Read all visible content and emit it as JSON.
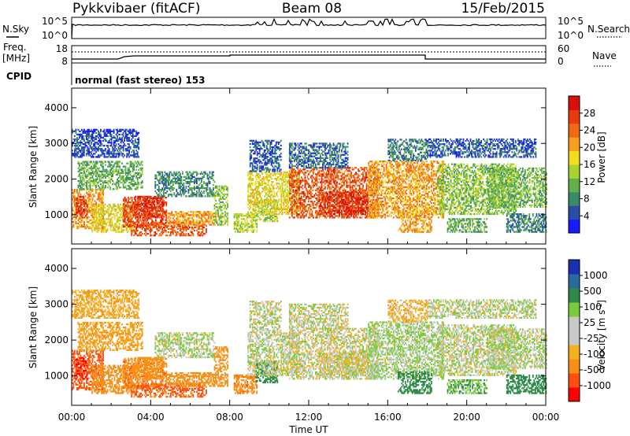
{
  "header": {
    "station": "Pykkvibaer (fitACF)",
    "beam": "Beam 08",
    "date": "15/Feb/2015"
  },
  "status_panels": {
    "nsky_label": "N.Sky",
    "nsky_ticks": [
      "10^5",
      "10^0"
    ],
    "nsearch_label": "N.Search",
    "nsearch_ticks": [
      "10^5",
      "10^0"
    ],
    "freq_label": "Freq.",
    "freq_unit": "[MHz]",
    "freq_ticks": [
      "18",
      "8"
    ],
    "nave_label": "Nave",
    "nave_ticks": [
      "60",
      "0"
    ],
    "cpid_label": "CPID",
    "cpid_value": "normal (fast stereo) 153"
  },
  "chart_data": [
    {
      "type": "heatmap",
      "name": "power",
      "ylabel": "Slant Range [km]",
      "ylim": [
        180,
        4550
      ],
      "yticks": [
        {
          "value": 1000,
          "label": "1000"
        },
        {
          "value": 2000,
          "label": "2000"
        },
        {
          "value": 3000,
          "label": "3000"
        },
        {
          "value": 4000,
          "label": "4000"
        }
      ],
      "colorbar": {
        "label": "Power [dB]",
        "ticks": [
          "4",
          "8",
          "12",
          "16",
          "20",
          "24",
          "28"
        ],
        "colors": [
          "#1a1aff",
          "#2a4da8",
          "#3a8a6a",
          "#5fb14a",
          "#a8d22e",
          "#f5dc1e",
          "#f5a01e",
          "#f06a14",
          "#e83a0e",
          "#d8100a"
        ]
      }
    },
    {
      "type": "heatmap",
      "name": "velocity",
      "ylabel": "Slant Range [km]",
      "ylim": [
        180,
        4550
      ],
      "yticks": [
        {
          "value": 1000,
          "label": "1000"
        },
        {
          "value": 2000,
          "label": "2000"
        },
        {
          "value": 3000,
          "label": "3000"
        },
        {
          "value": 4000,
          "label": "4000"
        }
      ],
      "colorbar": {
        "label": "Velocity [m s",
        "label_sup": "-1",
        "label_end": "]",
        "ticks": [
          "-1000",
          "-500",
          "-100",
          "-25",
          "25",
          "100",
          "500",
          "1000"
        ],
        "colors": [
          "#ff0000",
          "#ff5010",
          "#f79016",
          "#f5b020",
          "#c8c8c8",
          "#c8c8c8",
          "#7acb3c",
          "#2f8a4a",
          "#2a6aa0",
          "#1a30b0"
        ]
      }
    }
  ],
  "x_axis": {
    "label": "Time UT",
    "xlim": [
      0,
      24
    ],
    "ticks": [
      {
        "value": 0,
        "label": "00:00"
      },
      {
        "value": 4,
        "label": "04:00"
      },
      {
        "value": 8,
        "label": "08:00"
      },
      {
        "value": 12,
        "label": "12:00"
      },
      {
        "value": 16,
        "label": "16:00"
      },
      {
        "value": 20,
        "label": "20:00"
      },
      {
        "value": 24,
        "label": "00:00"
      }
    ]
  },
  "scatter_regions": [
    {
      "t0": 0.0,
      "t1": 1.6,
      "r0": 600,
      "r1": 1700,
      "p": 22,
      "v": -700
    },
    {
      "t0": 0.2,
      "t1": 0.8,
      "r0": 900,
      "r1": 1500,
      "p": 28,
      "v": -1000
    },
    {
      "t0": 1.0,
      "t1": 3.2,
      "r0": 500,
      "r1": 1300,
      "p": 18,
      "v": -300
    },
    {
      "t0": 2.6,
      "t1": 4.8,
      "r0": 650,
      "r1": 1500,
      "p": 27,
      "v": -400
    },
    {
      "t0": 3.2,
      "t1": 4.6,
      "r0": 900,
      "r1": 1500,
      "p": 28,
      "v": -200
    },
    {
      "t0": 3.0,
      "t1": 6.8,
      "r0": 400,
      "r1": 800,
      "p": 26,
      "v": -600
    },
    {
      "t0": 4.8,
      "t1": 7.4,
      "r0": 700,
      "r1": 1100,
      "p": 22,
      "v": -200
    },
    {
      "t0": 4.2,
      "t1": 7.2,
      "r0": 1500,
      "r1": 2200,
      "p": 10,
      "v": 20
    },
    {
      "t0": 0.3,
      "t1": 3.6,
      "r0": 1700,
      "r1": 2500,
      "p": 12,
      "v": -100
    },
    {
      "t0": 0.0,
      "t1": 3.4,
      "r0": 2600,
      "r1": 3400,
      "p": 6,
      "v": -80
    },
    {
      "t0": 7.2,
      "t1": 7.9,
      "r0": 700,
      "r1": 1800,
      "p": 14,
      "v": -300
    },
    {
      "t0": 8.2,
      "t1": 9.4,
      "r0": 500,
      "r1": 1000,
      "p": 16,
      "v": -400
    },
    {
      "t0": 9.3,
      "t1": 10.4,
      "r0": 800,
      "r1": 1400,
      "p": 15,
      "v": 150
    },
    {
      "t0": 8.9,
      "t1": 11.5,
      "r0": 1000,
      "r1": 2200,
      "p": 18,
      "v": 10
    },
    {
      "t0": 9.0,
      "t1": 10.6,
      "r0": 2200,
      "r1": 3100,
      "p": 7,
      "v": 5
    },
    {
      "t0": 11.0,
      "t1": 15.5,
      "r0": 900,
      "r1": 2300,
      "p": 26,
      "v": 0
    },
    {
      "t0": 12.5,
      "t1": 15.0,
      "r0": 1000,
      "r1": 1600,
      "p": 29,
      "v": -10
    },
    {
      "t0": 11.0,
      "t1": 14.0,
      "r0": 2300,
      "r1": 3000,
      "p": 8,
      "v": 10
    },
    {
      "t0": 15.0,
      "t1": 18.8,
      "r0": 900,
      "r1": 2500,
      "p": 22,
      "v": 30
    },
    {
      "t0": 16.5,
      "t1": 18.2,
      "r0": 500,
      "r1": 1100,
      "p": 22,
      "v": 200
    },
    {
      "t0": 16.0,
      "t1": 18.0,
      "r0": 2500,
      "r1": 3100,
      "p": 9,
      "v": -60
    },
    {
      "t0": 18.5,
      "t1": 22.5,
      "r0": 1000,
      "r1": 2400,
      "p": 14,
      "v": 10
    },
    {
      "t0": 19.0,
      "t1": 21.0,
      "r0": 500,
      "r1": 900,
      "p": 12,
      "v": 80
    },
    {
      "t0": 21.0,
      "t1": 24.0,
      "r0": 1200,
      "r1": 2300,
      "p": 13,
      "v": 20
    },
    {
      "t0": 22.0,
      "t1": 24.0,
      "r0": 500,
      "r1": 1000,
      "p": 9,
      "v": 200
    },
    {
      "t0": 18.0,
      "t1": 23.5,
      "r0": 2600,
      "r1": 3100,
      "p": 7,
      "v": 15
    }
  ]
}
